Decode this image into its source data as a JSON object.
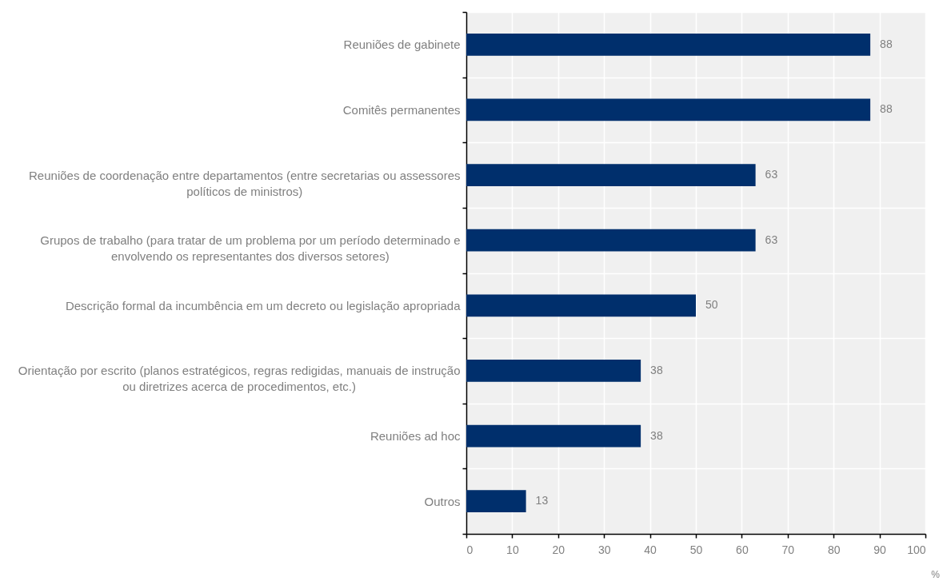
{
  "chart_data": {
    "type": "bar",
    "orientation": "horizontal",
    "categories": [
      "Reuniões de gabinete",
      "Comitês permanentes",
      "Reuniões de coordenação entre departamentos (entre secretarias ou assessores políticos de ministros)",
      "Grupos de trabalho (para tratar de um problema por um período determinado e envolvendo os representantes dos diversos setores)",
      "Descrição formal da incumbência em um decreto ou legislação apropriada",
      "Orientação por escrito (planos estratégicos, regras redigidas, manuais de instrução ou diretrizes acerca de procedimentos, etc.)",
      "Reuniões ad hoc",
      "Outros"
    ],
    "values": [
      88,
      88,
      63,
      63,
      50,
      38,
      38,
      13
    ],
    "color": "#002f6c",
    "xlabel": "%",
    "xlim": [
      0,
      100
    ],
    "xticks": [
      0,
      10,
      20,
      30,
      40,
      50,
      60,
      70,
      80,
      90,
      100
    ],
    "grid": true,
    "data_labels": true
  }
}
